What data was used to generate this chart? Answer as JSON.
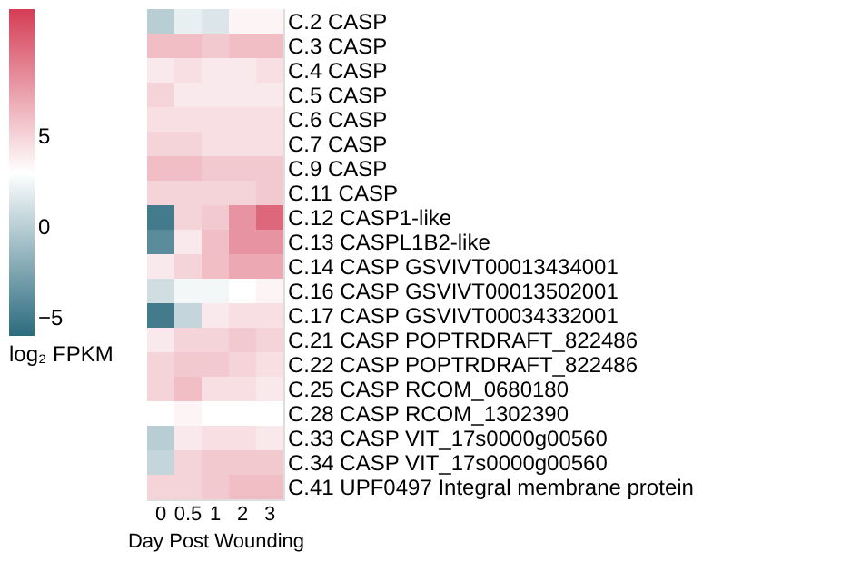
{
  "chart_data": {
    "type": "heatmap",
    "xlabel": "Day Post Wounding",
    "clabel": "log₂ FPKM",
    "categories": [
      "0",
      "0.5",
      "1",
      "2",
      "3"
    ],
    "y_categories": [
      "C.2 CASP",
      "C.3 CASP",
      "C.4 CASP",
      "C.5 CASP",
      "C.6 CASP",
      "C.7 CASP",
      "C.9 CASP",
      "C.11 CASP",
      "C.12 CASP1-like",
      "C.13 CASPL1B2-like",
      "C.14 CASP GSVIVT00013434001",
      "C.16 CASP GSVIVT00013502001",
      "C.17 CASP GSVIVT00034332001",
      "C.21 CASP POPTRDRAFT_822486",
      "C.22 CASP POPTRDRAFT_822486",
      "C.25 CASP RCOM_0680180",
      "C.28 CASP RCOM_1302390",
      "C.33 CASP VIT_17s0000g00560",
      "C.34 CASP VIT_17s0000g00560",
      "C.41 UPF0497 Integral membrane protein"
    ],
    "cells": [
      [
        0,
        2,
        1.5,
        3.5,
        3.5
      ],
      [
        6,
        6,
        5.5,
        6,
        6
      ],
      [
        4,
        4.5,
        4,
        4,
        4.5
      ],
      [
        5,
        4,
        4,
        4,
        4
      ],
      [
        4.5,
        4.5,
        4.5,
        4.5,
        4.5
      ],
      [
        5,
        5,
        4.5,
        4.5,
        4.5
      ],
      [
        6,
        6,
        5.5,
        5.5,
        5.5
      ],
      [
        5,
        5,
        5,
        5,
        5.5
      ],
      [
        -5,
        5,
        5.5,
        8,
        10
      ],
      [
        -4,
        4,
        6,
        8,
        8
      ],
      [
        4,
        5,
        6,
        7,
        7
      ],
      [
        1,
        2.5,
        2.5,
        3,
        3.5
      ],
      [
        -5,
        0.5,
        4,
        4.5,
        4.5
      ],
      [
        4,
        5,
        5,
        5.5,
        5
      ],
      [
        5,
        5.5,
        5.5,
        5,
        4.5
      ],
      [
        5,
        6,
        4.5,
        4.5,
        4
      ],
      [
        3,
        3.5,
        3,
        3,
        3
      ],
      [
        0,
        4,
        4.5,
        4.5,
        4
      ],
      [
        0.5,
        5,
        5.5,
        5.5,
        5.5
      ],
      [
        5,
        5,
        5.5,
        6,
        6
      ]
    ],
    "clim": [
      -6,
      12
    ],
    "cticks": [
      -5,
      0,
      5
    ]
  }
}
